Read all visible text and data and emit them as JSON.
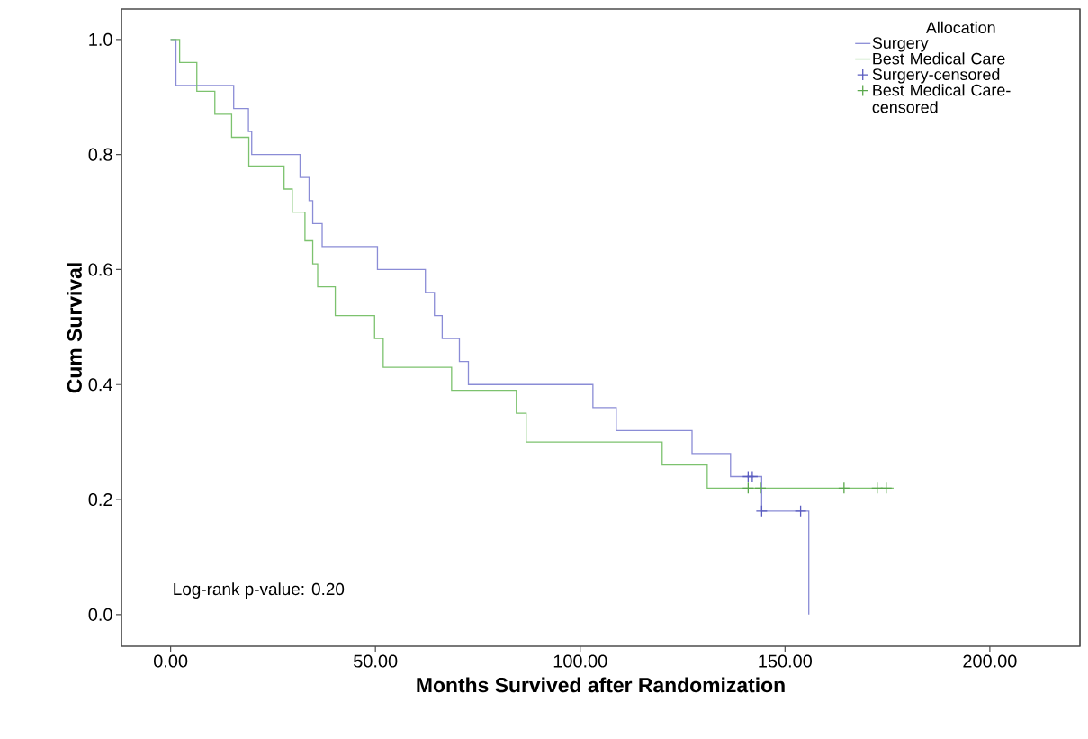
{
  "chart_data": {
    "type": "step",
    "xlabel": "Months Survived after Randomization",
    "ylabel": "Cum Survival",
    "legend_title": "Allocation",
    "annotations": [
      "Log-rank p-value: 0.20"
    ],
    "xlim": [
      -12,
      222
    ],
    "ylim": [
      -0.055,
      1.053
    ],
    "xticks": [
      {
        "value": 0,
        "label": "0.00"
      },
      {
        "value": 50,
        "label": "50.00"
      },
      {
        "value": 100,
        "label": "100.00"
      },
      {
        "value": 150,
        "label": "150.00"
      },
      {
        "value": 200,
        "label": "200.00"
      }
    ],
    "yticks": [
      {
        "value": 0,
        "label": "0.0"
      },
      {
        "value": 0.2,
        "label": "0.2"
      },
      {
        "value": 0.4,
        "label": "0.4"
      },
      {
        "value": 0.6,
        "label": "0.6"
      },
      {
        "value": 0.8,
        "label": "0.8"
      },
      {
        "value": 1,
        "label": "1.0"
      }
    ],
    "legend": "top right",
    "grid": false,
    "series": [
      {
        "name": "Surgery",
        "color": "#8a8cd6",
        "marker": "none",
        "x": [
          0,
          1.3,
          15.4,
          19,
          19.8,
          31.6,
          33.8,
          34.7,
          37,
          50.5,
          62.2,
          64.4,
          66.3,
          70.5,
          72.7,
          103.1,
          108.8,
          127.3,
          136.7,
          144.3,
          155.8
        ],
        "values": [
          1,
          0.92,
          0.88,
          0.84,
          0.8,
          0.76,
          0.72,
          0.68,
          0.64,
          0.6,
          0.56,
          0.52,
          0.48,
          0.44,
          0.4,
          0.36,
          0.32,
          0.28,
          0.24,
          0.18,
          0
        ]
      },
      {
        "name": "Best Medical Care",
        "color": "#7cc26e",
        "marker": "none",
        "x": [
          0,
          2.2,
          6.4,
          10.8,
          14.9,
          19.1,
          27.7,
          29.7,
          32.8,
          34.7,
          35.9,
          40.2,
          49.8,
          51.9,
          68.6,
          84.4,
          86.8,
          120,
          131,
          176.5
        ],
        "values": [
          1,
          0.96,
          0.91,
          0.87,
          0.83,
          0.78,
          0.74,
          0.7,
          0.65,
          0.61,
          0.57,
          0.52,
          0.48,
          0.43,
          0.39,
          0.35,
          0.3,
          0.26,
          0.22,
          0.22
        ]
      },
      {
        "name": "Surgery-censored",
        "type": "scatter",
        "color": "#5a5cc0",
        "marker": "cross",
        "x": [
          141,
          142,
          144.3,
          153.8
        ],
        "values": [
          0.24,
          0.24,
          0.18,
          0.18
        ]
      },
      {
        "name": "Best Medical Care-censored",
        "type": "scatter",
        "color": "#5aa84c",
        "marker": "cross",
        "x": [
          141,
          144,
          164.4,
          172.5,
          174.7
        ],
        "values": [
          0.22,
          0.22,
          0.22,
          0.22,
          0.22
        ]
      }
    ]
  }
}
